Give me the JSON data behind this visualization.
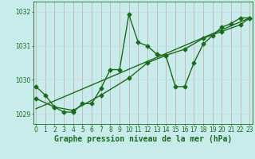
{
  "title": "Graphe pression niveau de la mer (hPa)",
  "background_color": "#c8ecec",
  "grid_color_v": "#d4a0a0",
  "grid_color_h": "#c0d8d8",
  "line_color": "#1a6b1a",
  "x_values": [
    0,
    1,
    2,
    3,
    4,
    5,
    6,
    7,
    8,
    9,
    10,
    11,
    12,
    13,
    14,
    15,
    16,
    17,
    18,
    19,
    20,
    21,
    22,
    23
  ],
  "line1_y": [
    1029.8,
    1029.55,
    1029.2,
    1029.05,
    1029.05,
    1029.3,
    1029.3,
    1029.75,
    1030.3,
    1030.3,
    1031.92,
    1031.1,
    1031.0,
    1030.75,
    1030.7,
    1029.8,
    1029.8,
    1030.5,
    1031.05,
    1031.3,
    1031.55,
    1031.65,
    1031.82,
    1031.82
  ],
  "line2_x": [
    0,
    2,
    4,
    7,
    10,
    12,
    14,
    16,
    18,
    20,
    22,
    23
  ],
  "line2_y": [
    1029.45,
    1029.2,
    1029.1,
    1029.55,
    1030.05,
    1030.5,
    1030.72,
    1030.9,
    1031.22,
    1031.42,
    1031.62,
    1031.82
  ],
  "trend_x": [
    0,
    23
  ],
  "trend_y": [
    1029.15,
    1031.82
  ],
  "ylim": [
    1028.7,
    1032.3
  ],
  "xlim": [
    -0.3,
    23.3
  ],
  "yticks": [
    1029,
    1030,
    1031,
    1032
  ],
  "title_fontsize": 7,
  "tick_fontsize": 5.5,
  "linewidth": 1.0,
  "markersize": 2.5
}
